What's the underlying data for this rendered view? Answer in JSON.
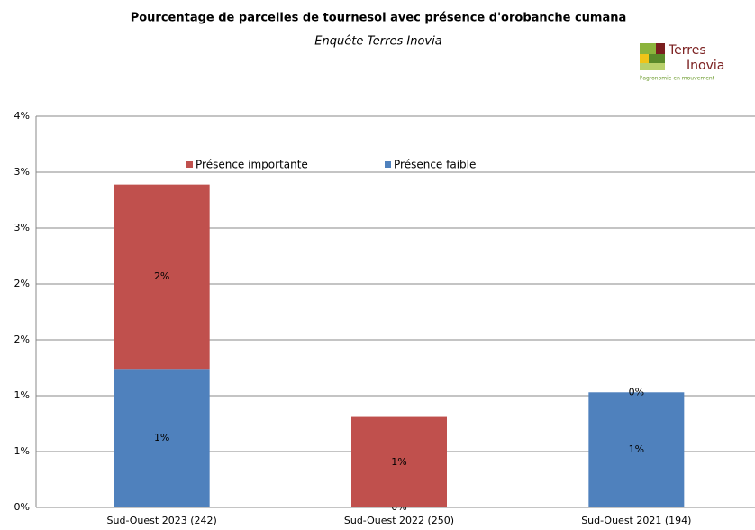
{
  "chart_data": {
    "type": "stacked_bar",
    "title": "Pourcentage de parcelles de tournesol avec présence d'orobanche cumana",
    "subtitle": "Enquête Terres Inovia",
    "logo": {
      "line1": "Terres",
      "line2": "Inovia",
      "tagline": "l'agronomie en mouvement"
    },
    "categories": [
      "Sud-Ouest 2023 (242)",
      "Sud-Ouest 2022 (250)",
      "Sud-Ouest 2021 (194)"
    ],
    "series": [
      {
        "name": "Présence importante",
        "color": "#c0504d",
        "values": [
          1.65,
          0.81,
          0
        ],
        "value_labels": [
          "2%",
          "1%",
          "0%"
        ]
      },
      {
        "name": "Présence faible",
        "color": "#4f81bd",
        "values": [
          1.24,
          0,
          1.03
        ],
        "value_labels": [
          "1%",
          "0%",
          "1%"
        ]
      }
    ],
    "stack_order": [
      1,
      0
    ],
    "ylim": [
      0,
      3.5
    ],
    "yticks": [
      {
        "value": 0,
        "label": "0%"
      },
      {
        "value": 0.5,
        "label": "1%"
      },
      {
        "value": 1,
        "label": "1%"
      },
      {
        "value": 1.5,
        "label": "2%"
      },
      {
        "value": 2,
        "label": "2%"
      },
      {
        "value": 2.5,
        "label": "3%"
      },
      {
        "value": 3,
        "label": "3%"
      },
      {
        "value": 3.5,
        "label": "4%"
      }
    ],
    "grid": true
  }
}
